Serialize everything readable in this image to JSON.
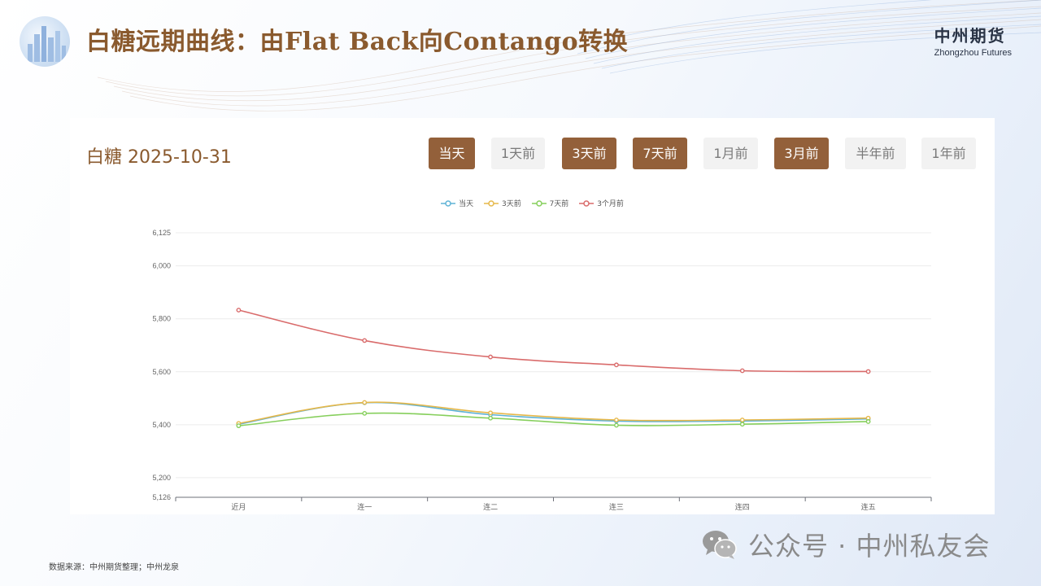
{
  "slide": {
    "title": "白糖远期曲线：由Flat Back向Contango转换",
    "brand_cn": "中州期货",
    "brand_en": "Zhongzhou Futures",
    "source": "数据来源：中州期货整理；中州龙泉",
    "watermark": "公众号 · 中州私友会"
  },
  "panel": {
    "title": "白糖 2025-10-31",
    "buttons": [
      {
        "label": "当天",
        "active": true
      },
      {
        "label": "1天前",
        "active": false
      },
      {
        "label": "3天前",
        "active": true
      },
      {
        "label": "7天前",
        "active": true
      },
      {
        "label": "1月前",
        "active": false
      },
      {
        "label": "3月前",
        "active": true
      },
      {
        "label": "半年前",
        "active": false
      },
      {
        "label": "1年前",
        "active": false
      }
    ]
  },
  "colors": {
    "accent": "#93603a",
    "title": "#8a5a2e"
  },
  "chart_data": {
    "type": "line",
    "categories": [
      "近月",
      "连一",
      "连二",
      "连三",
      "连四",
      "连五"
    ],
    "y_ticks": [
      "6,125",
      "6,000",
      "5,800",
      "5,600",
      "5,400",
      "5,200",
      "5,126"
    ],
    "ylim": [
      5126,
      6125
    ],
    "grid": true,
    "legend_position": "top-center",
    "series": [
      {
        "name": "当天",
        "color": "#5fb3d6",
        "values": [
          5402,
          5483,
          5438,
          5414,
          5414,
          5422
        ]
      },
      {
        "name": "3天前",
        "color": "#e6b84a",
        "values": [
          5405,
          5484,
          5445,
          5418,
          5418,
          5425
        ]
      },
      {
        "name": "7天前",
        "color": "#86cf5c",
        "values": [
          5396,
          5443,
          5425,
          5398,
          5402,
          5412
        ]
      },
      {
        "name": "3个月前",
        "color": "#d96b6b",
        "values": [
          5833,
          5718,
          5656,
          5626,
          5604,
          5601
        ]
      }
    ]
  }
}
